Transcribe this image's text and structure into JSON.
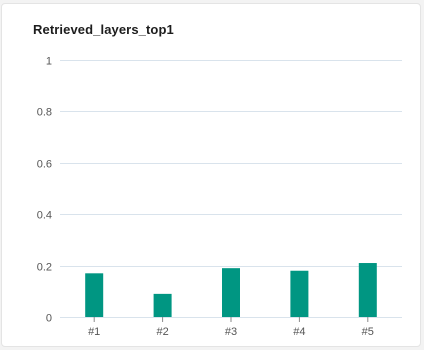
{
  "chart_data": {
    "type": "bar",
    "title": "Retrieved_layers_top1",
    "categories": [
      "#1",
      "#2",
      "#3",
      "#4",
      "#5"
    ],
    "values": [
      0.17,
      0.09,
      0.19,
      0.18,
      0.21
    ],
    "ylim": [
      0,
      1
    ],
    "yticks": [
      0,
      0.2,
      0.4,
      0.6,
      0.8,
      1
    ],
    "ytick_labels": [
      "0",
      "0.2",
      "0.4",
      "0.6",
      "0.8",
      "1"
    ],
    "grid": true,
    "bar_color": "#009682",
    "grid_color": "#d9e3ec"
  }
}
